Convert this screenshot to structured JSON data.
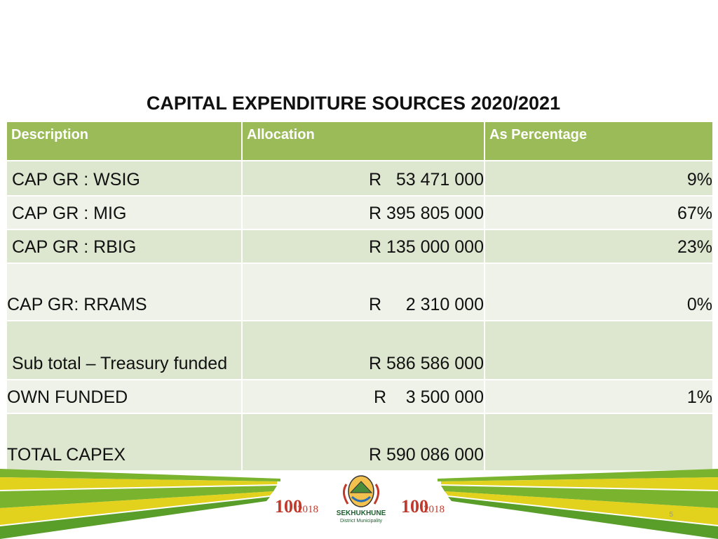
{
  "slide": {
    "title": "CAPITAL EXPENDITURE SOURCES 2020/2021",
    "page_number": "5"
  },
  "table": {
    "headers": [
      "Description",
      "Allocation",
      "As Percentage"
    ],
    "rows": [
      {
        "description": " CAP GR : WSIG",
        "allocation": "R   53 471 000",
        "percentage": "9%"
      },
      {
        "description": " CAP GR : MIG",
        "allocation": "R 395 805 000",
        "percentage": "67%"
      },
      {
        "description": " CAP GR : RBIG",
        "allocation": "R 135 000 000",
        "percentage": "23%"
      },
      {
        "description": "CAP GR: RRAMS",
        "allocation": "R     2 310 000",
        "percentage": "0%"
      },
      {
        "description": " Sub total – Treasury funded",
        "allocation": "R 586 586 000",
        "percentage": ""
      },
      {
        "description": "OWN FUNDED",
        "allocation": "R    3 500 000",
        "percentage": "1%"
      },
      {
        "description": "TOTAL CAPEX",
        "allocation": "R 590 086 000",
        "percentage": ""
      }
    ]
  },
  "footer": {
    "logo_text": "SEKHUKHUNE",
    "logo_subtext": "District Municipality",
    "badge_number": "100",
    "badge_year": "2018"
  },
  "colors": {
    "header_green": "#9bbb59",
    "band_green": "#7ab32e",
    "band_yellow": "#e2d11d"
  }
}
